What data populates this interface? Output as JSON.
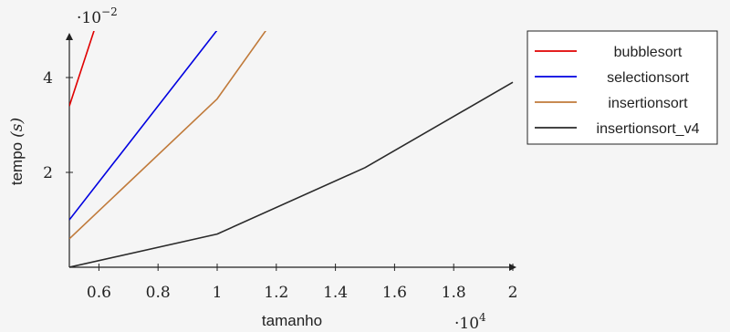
{
  "chart_data": {
    "type": "line",
    "xlabel": "tamanho",
    "ylabel_text": "tempo",
    "ylabel_unit": "(s)",
    "x_scale_label": "·10",
    "x_scale_exp": "4",
    "y_scale_label": "·10",
    "y_scale_exp": "−2",
    "xlim": [
      0.5,
      2.0
    ],
    "ylim": [
      0.0,
      5.0
    ],
    "x_ticks": [
      0.6,
      0.8,
      1.0,
      1.2,
      1.4,
      1.6,
      1.8,
      2.0
    ],
    "x_tick_labels": [
      "0.6",
      "0.8",
      "1",
      "1.2",
      "1.4",
      "1.6",
      "1.8",
      "2"
    ],
    "y_ticks": [
      2,
      4
    ],
    "y_tick_labels": [
      "2",
      "4"
    ],
    "legend_position": "top-right, outside plot",
    "series": [
      {
        "name": "bubblesort",
        "color": "#e00000",
        "x": [
          0.5,
          0.6
        ],
        "y": [
          3.4,
          5.3
        ]
      },
      {
        "name": "selectionsort",
        "color": "#0000e0",
        "x": [
          0.5,
          1.0
        ],
        "y": [
          1.0,
          5.0
        ]
      },
      {
        "name": "insertionsort",
        "color": "#c07a3a",
        "x": [
          0.5,
          1.0,
          1.2
        ],
        "y": [
          0.6,
          3.55,
          5.3
        ]
      },
      {
        "name": "insertionsort_v4",
        "color": "#2a2a2a",
        "x": [
          0.5,
          1.0,
          1.5,
          2.0
        ],
        "y": [
          0.0,
          0.7,
          2.1,
          3.9
        ]
      }
    ]
  }
}
